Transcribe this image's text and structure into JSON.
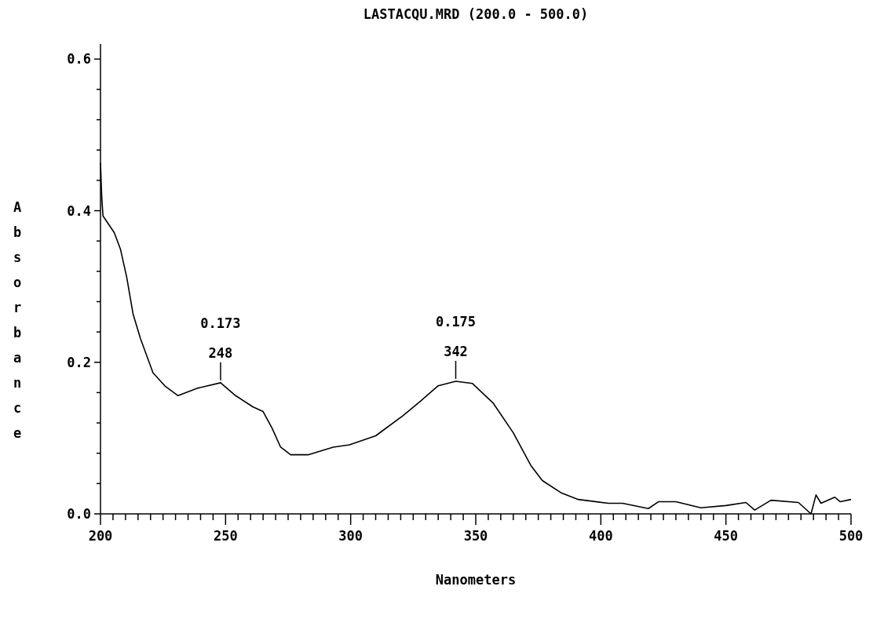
{
  "chart_data": {
    "type": "line",
    "title": "LASTACQU.MRD  (200.0 - 500.0)",
    "xlabel": "Nanometers",
    "ylabel": "Absorbance",
    "xlim": [
      200,
      500
    ],
    "ylim": [
      0,
      0.62
    ],
    "xticks": [
      200,
      {
        "value": 205,
        "label": null
      },
      {
        "value": 210,
        "label": null
      },
      {
        "value": 215,
        "label": null
      },
      {
        "value": 220,
        "label": null
      },
      {
        "value": 225,
        "label": null
      },
      {
        "value": 230,
        "label": null
      },
      {
        "value": 235,
        "label": null
      },
      {
        "value": 240,
        "label": null
      },
      {
        "value": 245,
        "label": null
      },
      250,
      {
        "value": 255,
        "label": null
      },
      {
        "value": 260,
        "label": null
      },
      {
        "value": 265,
        "label": null
      },
      {
        "value": 270,
        "label": null
      },
      {
        "value": 275,
        "label": null
      },
      {
        "value": 280,
        "label": null
      },
      {
        "value": 285,
        "label": null
      },
      {
        "value": 290,
        "label": null
      },
      {
        "value": 295,
        "label": null
      },
      300,
      {
        "value": 305,
        "label": null
      },
      {
        "value": 310,
        "label": null
      },
      {
        "value": 315,
        "label": null
      },
      {
        "value": 320,
        "label": null
      },
      {
        "value": 325,
        "label": null
      },
      {
        "value": 330,
        "label": null
      },
      {
        "value": 335,
        "label": null
      },
      {
        "value": 340,
        "label": null
      },
      {
        "value": 345,
        "label": null
      },
      350,
      {
        "value": 355,
        "label": null
      },
      {
        "value": 360,
        "label": null
      },
      {
        "value": 365,
        "label": null
      },
      {
        "value": 370,
        "label": null
      },
      {
        "value": 375,
        "label": null
      },
      {
        "value": 380,
        "label": null
      },
      {
        "value": 385,
        "label": null
      },
      {
        "value": 390,
        "label": null
      },
      {
        "value": 395,
        "label": null
      },
      400,
      {
        "value": 405,
        "label": null
      },
      {
        "value": 410,
        "label": null
      },
      {
        "value": 415,
        "label": null
      },
      {
        "value": 420,
        "label": null
      },
      {
        "value": 425,
        "label": null
      },
      {
        "value": 430,
        "label": null
      },
      {
        "value": 435,
        "label": null
      },
      {
        "value": 440,
        "label": null
      },
      {
        "value": 445,
        "label": null
      },
      450,
      {
        "value": 455,
        "label": null
      },
      {
        "value": 460,
        "label": null
      },
      {
        "value": 465,
        "label": null
      },
      {
        "value": 470,
        "label": null
      },
      {
        "value": 475,
        "label": null
      },
      {
        "value": 480,
        "label": null
      },
      {
        "value": 485,
        "label": null
      },
      {
        "value": 490,
        "label": null
      },
      {
        "value": 495,
        "label": null
      },
      500
    ],
    "yticks": [
      {
        "value": 0,
        "label": "0.0"
      },
      {
        "value": 0.04,
        "label": null
      },
      {
        "value": 0.08,
        "label": null
      },
      {
        "value": 0.12,
        "label": null
      },
      {
        "value": 0.16,
        "label": null
      },
      {
        "value": 0.2,
        "label": "0.2"
      },
      {
        "value": 0.24,
        "label": null
      },
      {
        "value": 0.28,
        "label": null
      },
      {
        "value": 0.32,
        "label": null
      },
      {
        "value": 0.36,
        "label": null
      },
      {
        "value": 0.4,
        "label": "0.4"
      },
      {
        "value": 0.44,
        "label": null
      },
      {
        "value": 0.48,
        "label": null
      },
      {
        "value": 0.52,
        "label": null
      },
      {
        "value": 0.56,
        "label": null
      },
      {
        "value": 0.6,
        "label": "0.6"
      }
    ],
    "grid": false,
    "marker": "none",
    "line_style": "solid",
    "annotations": [
      "0.173",
      {
        "text": "248",
        "x": 248,
        "y": 0.173
      },
      "0.175",
      {
        "text": "342",
        "x": 342,
        "y": 0.175
      }
    ],
    "series": [
      {
        "color": "#000000",
        "x": [
          200,
          200.5,
          201,
          205.5,
          208,
          210.5,
          213,
          216,
          221,
          226,
          231,
          239,
          248,
          254,
          261,
          265,
          268.6,
          272,
          276,
          283,
          293,
          299.5,
          310,
          320.7,
          328,
          335,
          342,
          348.7,
          357,
          365,
          372,
          376.6,
          384,
          391,
          403,
          408.7,
          419,
          423,
          430,
          440,
          450,
          458,
          461.5,
          468,
          479,
          484,
          486,
          488,
          493.5,
          495.7,
          500
        ],
        "values": [
          0.463,
          0.418,
          0.393,
          0.371,
          0.349,
          0.312,
          0.264,
          0.231,
          0.186,
          0.168,
          0.156,
          0.166,
          0.173,
          0.156,
          0.141,
          0.135,
          0.113,
          0.088,
          0.078,
          0.078,
          0.088,
          0.091,
          0.103,
          0.129,
          0.149,
          0.169,
          0.175,
          0.172,
          0.146,
          0.107,
          0.064,
          0.044,
          0.028,
          0.019,
          0.014,
          0.014,
          0.007,
          0.016,
          0.016,
          0.008,
          0.011,
          0.015,
          0.005,
          0.018,
          0.015,
          0.0,
          0.025,
          0.014,
          0.022,
          0.016,
          0.019
        ]
      }
    ]
  }
}
